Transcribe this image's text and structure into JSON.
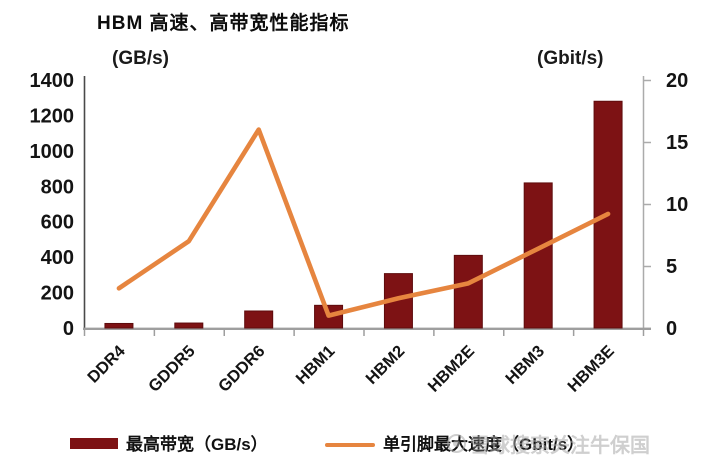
{
  "title": "HBM 高速、高带宽性能指标",
  "chart_data": {
    "type": "combo-bar-line",
    "title": "HBM 高速、高带宽性能指标",
    "categories": [
      "DDR4",
      "GDDR5",
      "GDDR6",
      "HBM1",
      "HBM2",
      "HBM2E",
      "HBM3",
      "HBM3E"
    ],
    "series": [
      {
        "name": "最高带宽（GB/s）",
        "type": "bar",
        "y_axis": "left",
        "color": "#7D1214",
        "values": [
          25.6,
          28,
          96,
          128,
          307,
          410,
          819,
          1280
        ]
      },
      {
        "name": "单引脚最大速度（Gbit/s）",
        "type": "line",
        "y_axis": "right",
        "color": "#E6853F",
        "values": [
          3.2,
          7,
          16,
          1,
          2.4,
          3.6,
          6.4,
          9.2
        ]
      }
    ],
    "left_axis": {
      "label": "(GB/s)",
      "min": 0,
      "max": 1400,
      "step": 200,
      "ticks": [
        0,
        200,
        400,
        600,
        800,
        1000,
        1200,
        1400
      ]
    },
    "right_axis": {
      "label": "(Gbit/s)",
      "min": 0,
      "max": 20,
      "step": 5,
      "ticks": [
        0,
        5,
        10,
        15,
        20
      ]
    },
    "grid": false,
    "legend_position": "bottom",
    "category_label_rotation": -45
  },
  "legend": {
    "bar_label": "最高带宽（GB/s）",
    "line_label": "单引脚最大速度（Gbit/s）"
  },
  "watermark": {
    "platform": "雪球",
    "text": "雪球搜索关注牛保国"
  },
  "colors": {
    "bar": "#7D1214",
    "bar_stroke": "#5E0C0D",
    "line": "#E6853F",
    "axis_gray": "#9E9E9E",
    "right_axis_gray": "#ABABAB",
    "left_axis": "#4A4A4A",
    "text": "#141414",
    "watermark": "#A9A9A9"
  }
}
